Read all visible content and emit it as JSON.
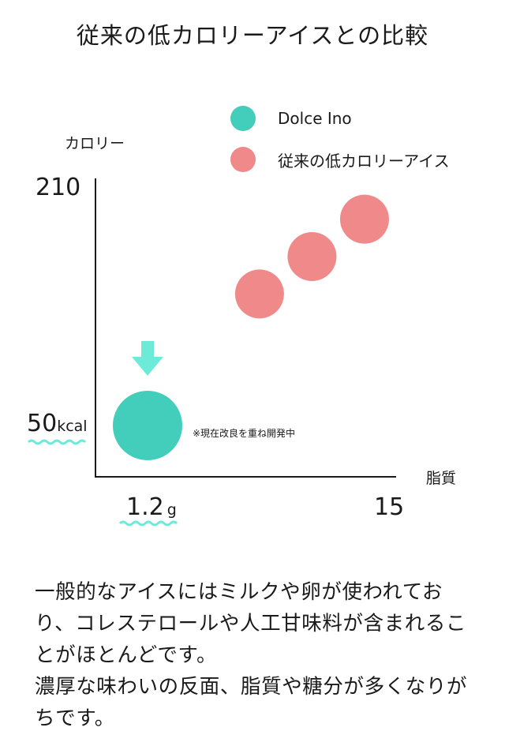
{
  "title": "従来の低カロリーアイスとの比較",
  "legend": [
    {
      "label": "Dolce Ino",
      "color": "#43CDBB"
    },
    {
      "label": "従来の低カロリーアイス",
      "color": "#F08A8A"
    }
  ],
  "chart_data": {
    "type": "scatter",
    "xlabel": "脂質",
    "ylabel": "カロリー",
    "series": [
      {
        "name": "Dolce Ino",
        "color": "#43CDBB",
        "points": [
          {
            "x": 1.2,
            "y": 50
          }
        ]
      },
      {
        "name": "従来の低カロリーアイス",
        "color": "#F08A8A",
        "points": [
          {
            "x": 7.6,
            "y": 138
          },
          {
            "x": 10.6,
            "y": 163
          },
          {
            "x": 13.6,
            "y": 188
          }
        ]
      }
    ],
    "ticks": {
      "y_top": "210",
      "y_bottom_value": "50",
      "y_bottom_unit": "kcal",
      "x_left_value": "1.2",
      "x_left_unit": "g",
      "x_right": "15"
    },
    "annotation": "※現在改良を重ね開発中",
    "highlight_color": "#6EEBD8",
    "grid": false
  },
  "body_text": [
    "一般的なアイスにはミルクや卵が使われており、コレステロールや人工甘味料が含まれることがほとんどです。",
    "濃厚な味わいの反面、脂質や糖分が多くなりがちです。"
  ]
}
